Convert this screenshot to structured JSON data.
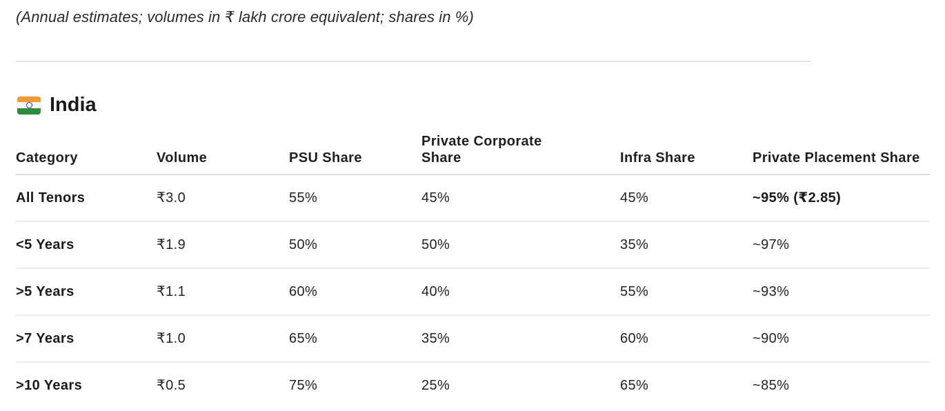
{
  "note": "(Annual estimates; volumes in ₹ lakh crore equivalent; shares in %)",
  "section": {
    "flag_icon": "india-flag-icon",
    "title": "India"
  },
  "table": {
    "headers": [
      "Category",
      "Volume",
      "PSU Share",
      "Private Corporate\nShare",
      "Infra Share",
      "Private Placement Share"
    ],
    "rows": [
      [
        "All Tenors",
        "₹3.0",
        "55%",
        "45%",
        "45%",
        "~95% (₹2.85)"
      ],
      [
        "<5 Years",
        "₹1.9",
        "50%",
        "50%",
        "35%",
        "~97%"
      ],
      [
        ">5 Years",
        "₹1.1",
        "60%",
        "40%",
        "55%",
        "~93%"
      ],
      [
        ">7 Years",
        "₹1.0",
        "65%",
        "35%",
        "60%",
        "~90%"
      ],
      [
        ">10 Years",
        "₹0.5",
        "75%",
        "25%",
        "65%",
        "~85%"
      ]
    ]
  }
}
